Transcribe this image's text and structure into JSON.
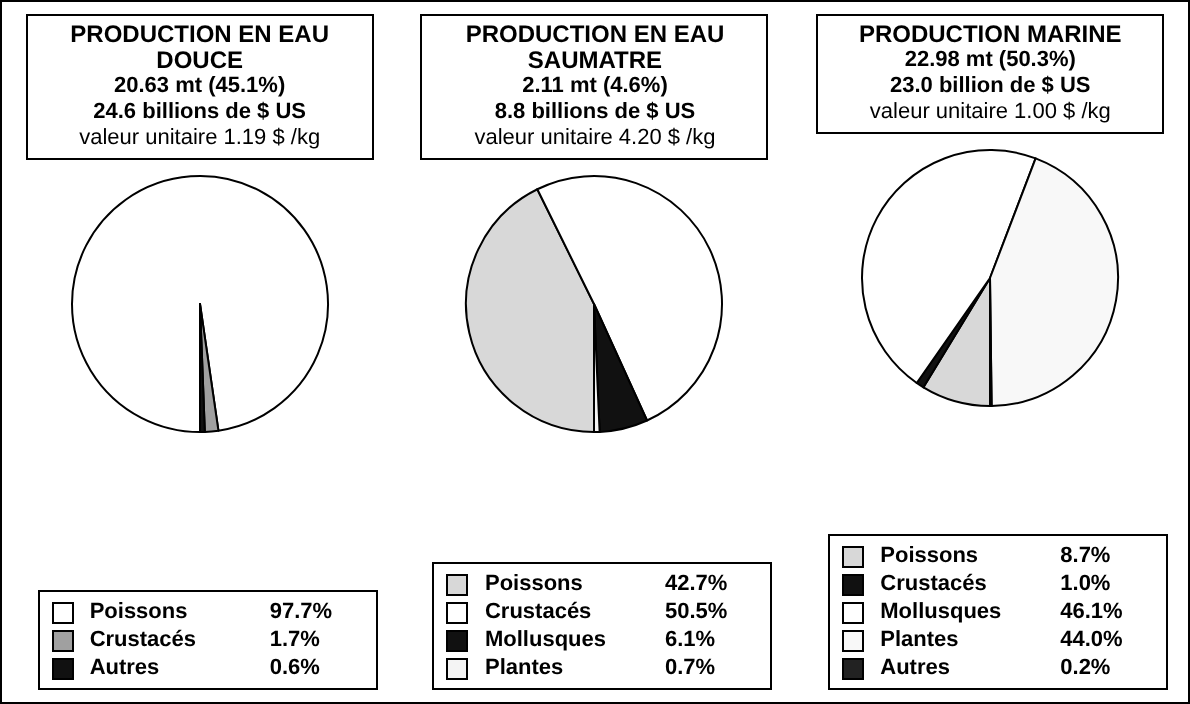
{
  "chart_data": [
    {
      "type": "pie",
      "title": "PRODUCTION EN EAU DOUCE",
      "annotations": [
        "20.63 mt (45.1%)",
        "24.6 billions de $ US",
        "valeur unitaire 1.19 $ /kg"
      ],
      "categories": [
        "Poissons",
        "Crustacés",
        "Autres"
      ],
      "values": [
        97.7,
        1.7,
        0.6
      ],
      "value_labels": [
        "97.7%",
        "1.7%",
        "0.6%"
      ],
      "colors": [
        "#ffffff",
        "#a0a0a0",
        "#111111"
      ],
      "legend": "bottom"
    },
    {
      "type": "pie",
      "title": "PRODUCTION EN EAU SAUMATRE",
      "annotations": [
        "2.11 mt (4.6%)",
        "8.8 billions de $ US",
        "valeur unitaire 4.20 $ /kg"
      ],
      "categories": [
        "Poissons",
        "Crustacés",
        "Mollusques",
        "Plantes"
      ],
      "values": [
        42.7,
        50.5,
        6.1,
        0.7
      ],
      "value_labels": [
        "42.7%",
        "50.5%",
        "6.1%",
        "0.7%"
      ],
      "colors": [
        "#d8d8d8",
        "#ffffff",
        "#111111",
        "#f4f4f4"
      ],
      "legend": "bottom"
    },
    {
      "type": "pie",
      "title": "PRODUCTION MARINE",
      "annotations": [
        "22.98 mt (50.3%)",
        "23.0 billion de $ US",
        "valeur unitaire 1.00 $ /kg"
      ],
      "categories": [
        "Poissons",
        "Crustacés",
        "Mollusques",
        "Plantes",
        "Autres"
      ],
      "values": [
        8.7,
        1.0,
        46.1,
        44.0,
        0.2
      ],
      "value_labels": [
        "8.7%",
        "1.0%",
        "46.1%",
        "44.0%",
        "0.2%"
      ],
      "colors": [
        "#d8d8d8",
        "#111111",
        "#ffffff",
        "#f8f8f8",
        "#222222"
      ],
      "legend": "bottom"
    }
  ]
}
